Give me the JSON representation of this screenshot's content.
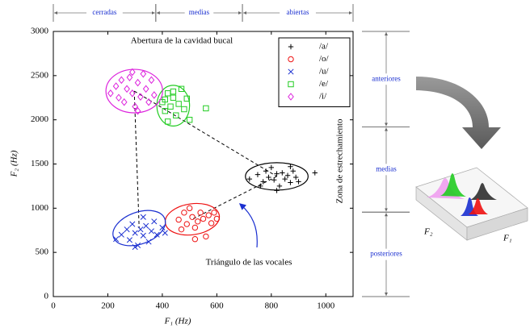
{
  "chart_data": {
    "type": "scatter",
    "x_label": "F₁ (Hz)",
    "y_label": "F₂ (Hz)",
    "xlim": [
      0,
      1100
    ],
    "ylim": [
      0,
      3000
    ],
    "xticks": [
      0,
      200,
      400,
      600,
      800,
      1000
    ],
    "yticks": [
      0,
      500,
      1000,
      1500,
      2000,
      2500,
      3000
    ],
    "legend": "upper right",
    "series": [
      {
        "name": "/a/",
        "color": "#000000",
        "marker": "plus",
        "x": [
          720,
          750,
          770,
          780,
          790,
          800,
          810,
          820,
          830,
          840,
          850,
          860,
          870,
          880,
          890,
          900,
          960,
          760,
          820,
          870
        ],
        "values": [
          1330,
          1380,
          1300,
          1420,
          1350,
          1460,
          1320,
          1390,
          1250,
          1400,
          1330,
          1370,
          1290,
          1420,
          1350,
          1300,
          1400,
          1250,
          1200,
          1470
        ],
        "ellipse": {
          "cx": 820,
          "cy": 1360,
          "rx": 115,
          "ry": 155,
          "angle": 0
        }
      },
      {
        "name": "/o/",
        "color": "#ee1111",
        "marker": "circle",
        "x": [
          460,
          480,
          490,
          500,
          510,
          520,
          530,
          540,
          550,
          560,
          570,
          580,
          590,
          600,
          520,
          470
        ],
        "values": [
          870,
          950,
          820,
          1000,
          900,
          780,
          850,
          950,
          880,
          680,
          920,
          830,
          950,
          880,
          650,
          760
        ],
        "ellipse": {
          "cx": 510,
          "cy": 875,
          "rx": 100,
          "ry": 175,
          "angle": -8
        }
      },
      {
        "name": "/u/",
        "color": "#1a2fd0",
        "marker": "cross",
        "x": [
          230,
          250,
          270,
          280,
          290,
          300,
          310,
          320,
          330,
          340,
          350,
          360,
          370,
          380,
          400,
          410,
          330,
          300
        ],
        "values": [
          650,
          700,
          760,
          640,
          820,
          720,
          580,
          760,
          690,
          800,
          620,
          740,
          850,
          700,
          780,
          720,
          900,
          560
        ],
        "ellipse": {
          "cx": 315,
          "cy": 775,
          "rx": 100,
          "ry": 180,
          "angle": -20
        }
      },
      {
        "name": "/e/",
        "color": "#22cc22",
        "marker": "square",
        "x": [
          400,
          410,
          420,
          430,
          440,
          450,
          460,
          470,
          480,
          490,
          500,
          420,
          440,
          560,
          410
        ],
        "values": [
          2200,
          2100,
          2300,
          2150,
          2250,
          2050,
          2180,
          2350,
          2120,
          2240,
          2000,
          1980,
          2320,
          2130,
          2230
        ],
        "ellipse": {
          "cx": 440,
          "cy": 2160,
          "rx": 60,
          "ry": 230,
          "angle": 0
        }
      },
      {
        "name": "/i/",
        "color": "#dd22dd",
        "marker": "diamond",
        "x": [
          210,
          230,
          240,
          250,
          260,
          270,
          280,
          290,
          300,
          310,
          320,
          330,
          340,
          350,
          360,
          370,
          290,
          310
        ],
        "values": [
          2300,
          2380,
          2250,
          2450,
          2200,
          2350,
          2480,
          2300,
          2150,
          2420,
          2260,
          2520,
          2350,
          2200,
          2450,
          2280,
          2540,
          2100
        ],
        "ellipse": {
          "cx": 297,
          "cy": 2325,
          "rx": 104,
          "ry": 246,
          "angle": 0
        }
      }
    ],
    "annotations": [
      {
        "text": "Abertura de la cavidad bucal",
        "color": "#1a2fd0"
      },
      {
        "text": "Zona de estrechamiento",
        "color": "#1a2fd0"
      },
      {
        "text": "Triángulo de las vocales",
        "color": "#1a2fd0"
      }
    ],
    "x_zones": [
      {
        "label": "cerradas",
        "from": 0,
        "to": 376
      },
      {
        "label": "medias",
        "from": 376,
        "to": 694
      },
      {
        "label": "abiertas",
        "from": 694,
        "to": 1100
      }
    ],
    "y_zones": [
      {
        "label": "anteriores",
        "from": 1920,
        "to": 3000
      },
      {
        "label": "medias",
        "from": 955,
        "to": 1920
      },
      {
        "label": "posteriores",
        "from": 0,
        "to": 955
      }
    ],
    "inset": {
      "f2_label": "F₂",
      "f1_label": "F₁"
    }
  }
}
